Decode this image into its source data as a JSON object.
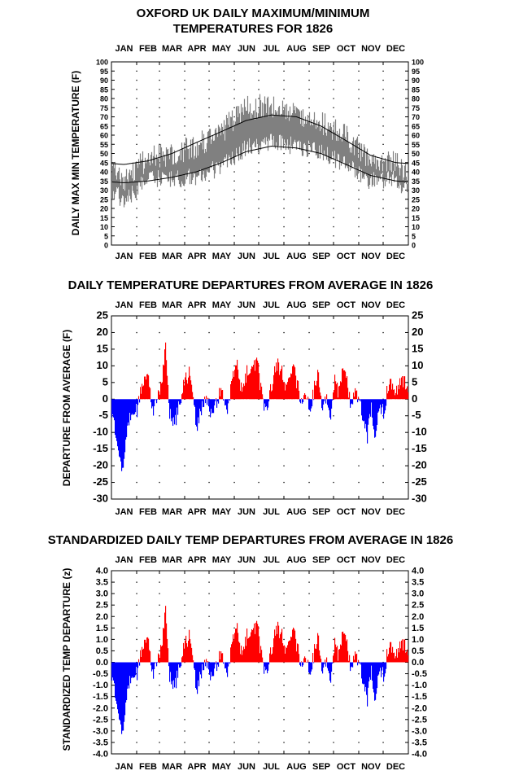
{
  "months": [
    "JAN",
    "FEB",
    "MAR",
    "APR",
    "MAY",
    "JUN",
    "JUL",
    "AUG",
    "SEP",
    "OCT",
    "NOV",
    "DEC"
  ],
  "colors": {
    "background": "#ffffff",
    "positive": "#ff0000",
    "negative": "#0000ff",
    "gray_series": "#808080",
    "normal_curve": "#000000"
  },
  "charts": {
    "temp": {
      "title_line1": "OXFORD UK DAILY MAXIMUM/MINIMUM",
      "title_line2": "TEMPERATURES FOR 1826",
      "ylabel": "DAILY MAX MIN TEMPERATURE (F)"
    },
    "dep": {
      "title": "DAILY TEMPERATURE DEPARTURES FROM AVERAGE IN 1826",
      "ylabel": "DEPARTURE FROM AVERAGE (F)"
    },
    "std": {
      "title": "STANDARDIZED DAILY TEMP DEPARTURES FROM AVERAGE IN 1826",
      "ylabel": "STANDARDIZED TEMP DEPARTURE (z)"
    }
  },
  "chart_data": [
    {
      "type": "area",
      "title": "OXFORD UK DAILY MAXIMUM/MINIMUM TEMPERATURES FOR 1826",
      "xlabel": "",
      "ylabel": "DAILY MAX MIN TEMPERATURE (F)",
      "x_categories": [
        "JAN",
        "FEB",
        "MAR",
        "APR",
        "MAY",
        "JUN",
        "JUL",
        "AUG",
        "SEP",
        "OCT",
        "NOV",
        "DEC"
      ],
      "ylim": [
        0,
        100
      ],
      "yticks": [
        0,
        5,
        10,
        15,
        20,
        25,
        30,
        35,
        40,
        45,
        50,
        55,
        60,
        65,
        70,
        75,
        80,
        85,
        90,
        95,
        100
      ],
      "grid": true,
      "daily_max_monthly_approx": [
        36,
        48,
        49,
        54,
        62,
        75,
        76,
        72,
        67,
        59,
        47,
        44
      ],
      "daily_min_monthly_approx": [
        24,
        37,
        36,
        37,
        43,
        53,
        56,
        54,
        51,
        44,
        35,
        36
      ],
      "normal_max_monthly": [
        44,
        46,
        50,
        56,
        62,
        68,
        71,
        70,
        65,
        57,
        49,
        45
      ],
      "normal_min_monthly": [
        34,
        35,
        37,
        40,
        45,
        51,
        54,
        53,
        50,
        44,
        38,
        35
      ]
    },
    {
      "type": "bar",
      "title": "DAILY TEMPERATURE DEPARTURES FROM AVERAGE IN 1826",
      "xlabel": "",
      "ylabel": "DEPARTURE FROM AVERAGE (F)",
      "x_categories": [
        "JAN",
        "FEB",
        "MAR",
        "APR",
        "MAY",
        "JUN",
        "JUL",
        "AUG",
        "SEP",
        "OCT",
        "NOV",
        "DEC"
      ],
      "ylim": [
        -30,
        25
      ],
      "yticks": [
        -30,
        -25,
        -20,
        -15,
        -10,
        -5,
        0,
        5,
        10,
        15,
        20,
        25
      ],
      "grid": true,
      "daily_departure_anchors_approx": [
        [
          1,
          -4
        ],
        [
          8,
          -12
        ],
        [
          14,
          -22
        ],
        [
          20,
          -8
        ],
        [
          27,
          -3
        ],
        [
          33,
          -3
        ],
        [
          37,
          4
        ],
        [
          45,
          7
        ],
        [
          52,
          -4
        ],
        [
          60,
          3
        ],
        [
          63,
          7
        ],
        [
          67,
          17
        ],
        [
          72,
          -4
        ],
        [
          78,
          -8
        ],
        [
          84,
          -2
        ],
        [
          88,
          4
        ],
        [
          96,
          8
        ],
        [
          100,
          2
        ],
        [
          105,
          -9
        ],
        [
          110,
          -4
        ],
        [
          117,
          1
        ],
        [
          124,
          -5
        ],
        [
          132,
          1
        ],
        [
          138,
          2
        ],
        [
          143,
          -3
        ],
        [
          150,
          6
        ],
        [
          155,
          10
        ],
        [
          160,
          3
        ],
        [
          165,
          7
        ],
        [
          170,
          9
        ],
        [
          175,
          11
        ],
        [
          180,
          10
        ],
        [
          185,
          2
        ],
        [
          190,
          -3
        ],
        [
          195,
          1
        ],
        [
          200,
          7
        ],
        [
          205,
          10
        ],
        [
          210,
          8
        ],
        [
          215,
          3
        ],
        [
          220,
          7
        ],
        [
          225,
          9
        ],
        [
          230,
          3
        ],
        [
          235,
          -2
        ],
        [
          240,
          2
        ],
        [
          245,
          -5
        ],
        [
          250,
          4
        ],
        [
          255,
          7
        ],
        [
          260,
          -2
        ],
        [
          265,
          1
        ],
        [
          270,
          -5
        ],
        [
          275,
          5
        ],
        [
          280,
          2
        ],
        [
          285,
          11
        ],
        [
          290,
          6
        ],
        [
          295,
          -3
        ],
        [
          300,
          2
        ],
        [
          305,
          1
        ],
        [
          310,
          -7
        ],
        [
          315,
          -11
        ],
        [
          320,
          -3
        ],
        [
          325,
          -13
        ],
        [
          330,
          -1
        ],
        [
          335,
          -4
        ],
        [
          340,
          3
        ],
        [
          345,
          5
        ],
        [
          350,
          1
        ],
        [
          355,
          4
        ],
        [
          360,
          6
        ],
        [
          365,
          3
        ]
      ]
    },
    {
      "type": "bar",
      "title": "STANDARDIZED DAILY TEMP DEPARTURES FROM AVERAGE IN 1826",
      "xlabel": "",
      "ylabel": "STANDARDIZED TEMP DEPARTURE (z)",
      "x_categories": [
        "JAN",
        "FEB",
        "MAR",
        "APR",
        "MAY",
        "JUN",
        "JUL",
        "AUG",
        "SEP",
        "OCT",
        "NOV",
        "DEC"
      ],
      "ylim": [
        -4.0,
        4.0
      ],
      "yticks": [
        -4.0,
        -3.5,
        -3.0,
        -2.5,
        -2.0,
        -1.5,
        -1.0,
        -0.5,
        0.0,
        0.5,
        1.0,
        1.5,
        2.0,
        2.5,
        3.0,
        3.5,
        4.0
      ],
      "grid": true,
      "z_scale_from_departure_approx": 0.145
    }
  ]
}
